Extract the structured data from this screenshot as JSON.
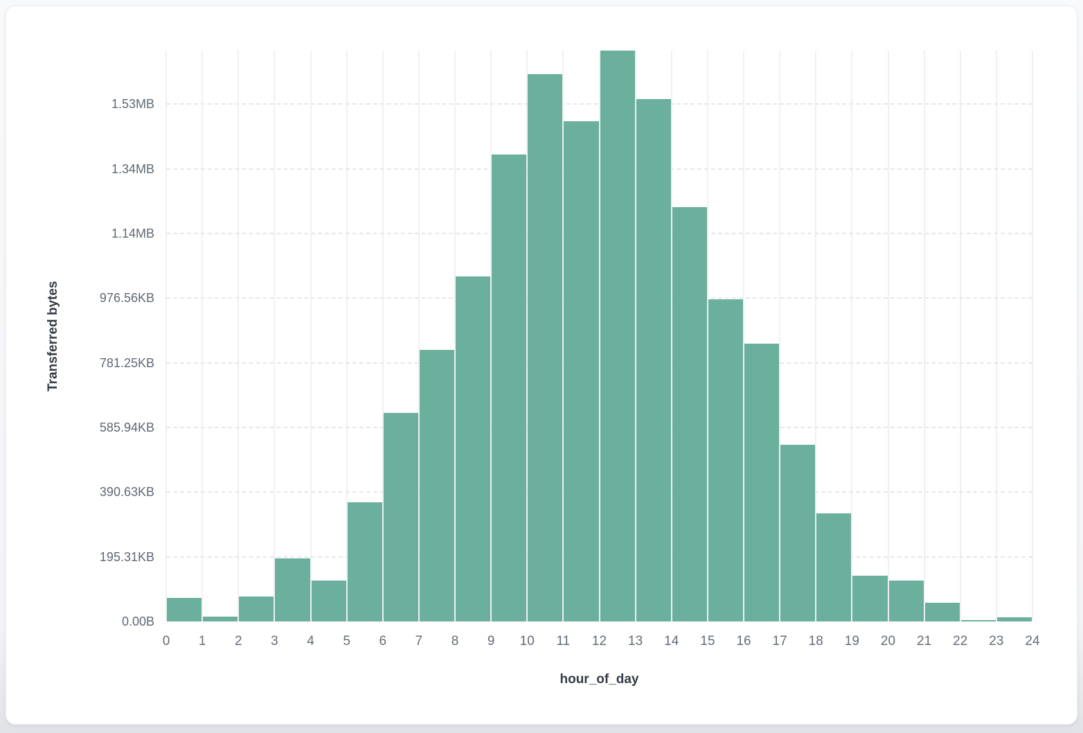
{
  "page": {
    "background": "#f3f4f7",
    "card_background": "#ffffff"
  },
  "chart_data": {
    "type": "bar",
    "title": "",
    "xlabel": "hour_of_day",
    "ylabel": "Transferred bytes",
    "bar_color": "#6BB09C",
    "grid": true,
    "legend_position": "none",
    "axis_max_bytes": 1766000,
    "x_range": [
      0,
      24
    ],
    "categories": [
      0,
      1,
      2,
      3,
      4,
      5,
      6,
      7,
      8,
      9,
      10,
      11,
      12,
      13,
      14,
      15,
      16,
      17,
      18,
      19,
      20,
      21,
      22,
      23
    ],
    "values_bytes": [
      73000,
      15000,
      77000,
      195000,
      126000,
      368000,
      645000,
      840000,
      1067000,
      1444000,
      1693000,
      1547000,
      1766000,
      1616000,
      1281000,
      996000,
      859000,
      546000,
      334000,
      141000,
      126000,
      58000,
      4000,
      13000
    ],
    "x_tick_labels": [
      "0",
      "1",
      "2",
      "3",
      "4",
      "5",
      "6",
      "7",
      "8",
      "9",
      "10",
      "11",
      "12",
      "13",
      "14",
      "15",
      "16",
      "17",
      "18",
      "19",
      "20",
      "21",
      "22",
      "23",
      "24"
    ],
    "y_ticks": [
      {
        "label": "0.00B",
        "bytes": 0
      },
      {
        "label": "195.31KB",
        "bytes": 200000
      },
      {
        "label": "390.63KB",
        "bytes": 400000
      },
      {
        "label": "585.94KB",
        "bytes": 600000
      },
      {
        "label": "781.25KB",
        "bytes": 800000
      },
      {
        "label": "976.56KB",
        "bytes": 1000000
      },
      {
        "label": "1.14MB",
        "bytes": 1200000
      },
      {
        "label": "1.34MB",
        "bytes": 1400000
      },
      {
        "label": "1.53MB",
        "bytes": 1600000
      }
    ]
  }
}
